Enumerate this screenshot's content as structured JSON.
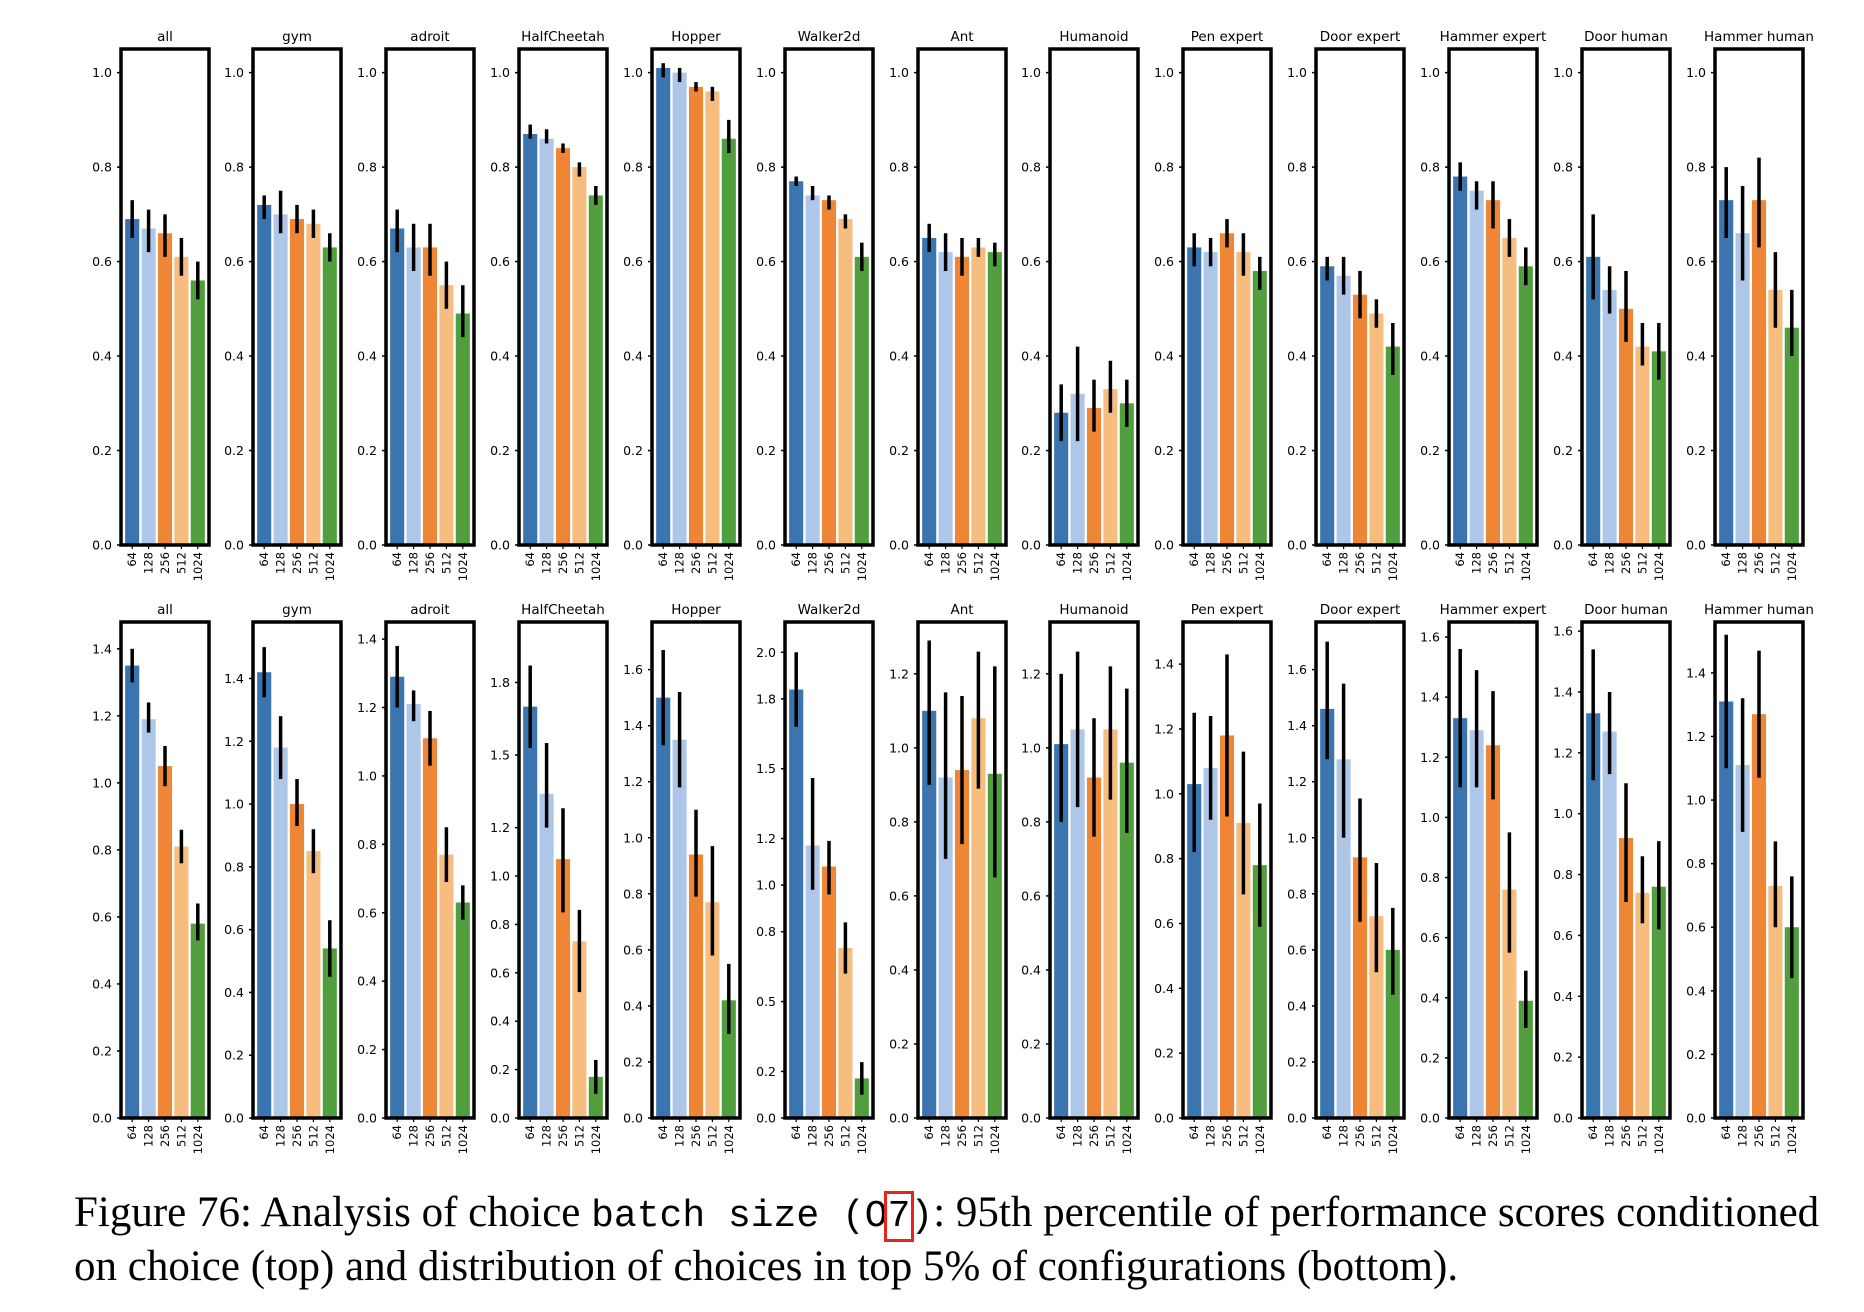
{
  "colors": [
    "#3b75af",
    "#aec7e8",
    "#ef8636",
    "#f7bd7f",
    "#519e3e"
  ],
  "choice_labels": [
    "64",
    "128",
    "256",
    "512",
    "1024"
  ],
  "caption": {
    "prefix": "Figure 76: Analysis of choice ",
    "code": "batch size",
    "paren_open": " (O",
    "highlight": "7",
    "paren_close": ")",
    "rest_line1": ": 95th percentile of performance scores conditioned",
    "line2": "on choice (top) and distribution of choices in top 5% of configurations (bottom)."
  },
  "chart_data": [
    {
      "type": "bar",
      "row": "top",
      "categories": [
        "64",
        "128",
        "256",
        "512",
        "1024"
      ],
      "ylim": [
        0,
        1.05
      ],
      "yticks": [
        0.0,
        0.2,
        0.4,
        0.6,
        0.8,
        1.0
      ],
      "tick_decimals": 1,
      "error_bars": true,
      "panels": [
        {
          "title": "all",
          "values": [
            0.69,
            0.67,
            0.66,
            0.61,
            0.56
          ],
          "err_low": [
            0.65,
            0.62,
            0.61,
            0.57,
            0.52
          ],
          "err_high": [
            0.73,
            0.71,
            0.7,
            0.65,
            0.6
          ]
        },
        {
          "title": "gym",
          "values": [
            0.72,
            0.7,
            0.69,
            0.68,
            0.63
          ],
          "err_low": [
            0.69,
            0.66,
            0.66,
            0.65,
            0.6
          ],
          "err_high": [
            0.74,
            0.75,
            0.72,
            0.71,
            0.66
          ]
        },
        {
          "title": "adroit",
          "values": [
            0.67,
            0.63,
            0.63,
            0.55,
            0.49
          ],
          "err_low": [
            0.62,
            0.58,
            0.57,
            0.5,
            0.44
          ],
          "err_high": [
            0.71,
            0.68,
            0.68,
            0.6,
            0.55
          ]
        },
        {
          "title": "HalfCheetah",
          "values": [
            0.87,
            0.86,
            0.84,
            0.8,
            0.74
          ],
          "err_low": [
            0.86,
            0.85,
            0.83,
            0.78,
            0.72
          ],
          "err_high": [
            0.89,
            0.88,
            0.85,
            0.81,
            0.76
          ]
        },
        {
          "title": "Hopper",
          "values": [
            1.01,
            1.0,
            0.97,
            0.96,
            0.86
          ],
          "err_low": [
            0.99,
            0.98,
            0.96,
            0.94,
            0.83
          ],
          "err_high": [
            1.02,
            1.01,
            0.98,
            0.97,
            0.9
          ]
        },
        {
          "title": "Walker2d",
          "values": [
            0.77,
            0.74,
            0.73,
            0.69,
            0.61
          ],
          "err_low": [
            0.76,
            0.73,
            0.71,
            0.67,
            0.58
          ],
          "err_high": [
            0.78,
            0.76,
            0.74,
            0.7,
            0.64
          ]
        },
        {
          "title": "Ant",
          "values": [
            0.65,
            0.62,
            0.61,
            0.63,
            0.62
          ],
          "err_low": [
            0.62,
            0.58,
            0.57,
            0.61,
            0.59
          ],
          "err_high": [
            0.68,
            0.66,
            0.65,
            0.65,
            0.64
          ]
        },
        {
          "title": "Humanoid",
          "values": [
            0.28,
            0.32,
            0.29,
            0.33,
            0.3
          ],
          "err_low": [
            0.22,
            0.22,
            0.24,
            0.28,
            0.25
          ],
          "err_high": [
            0.34,
            0.42,
            0.35,
            0.39,
            0.35
          ]
        },
        {
          "title": "Pen expert",
          "values": [
            0.63,
            0.62,
            0.66,
            0.62,
            0.58
          ],
          "err_low": [
            0.59,
            0.59,
            0.63,
            0.57,
            0.54
          ],
          "err_high": [
            0.66,
            0.65,
            0.69,
            0.66,
            0.61
          ]
        },
        {
          "title": "Door expert",
          "values": [
            0.59,
            0.57,
            0.53,
            0.49,
            0.42
          ],
          "err_low": [
            0.56,
            0.53,
            0.48,
            0.46,
            0.36
          ],
          "err_high": [
            0.61,
            0.61,
            0.58,
            0.52,
            0.47
          ]
        },
        {
          "title": "Hammer expert",
          "values": [
            0.78,
            0.75,
            0.73,
            0.65,
            0.59
          ],
          "err_low": [
            0.75,
            0.71,
            0.67,
            0.61,
            0.55
          ],
          "err_high": [
            0.81,
            0.77,
            0.77,
            0.69,
            0.63
          ]
        },
        {
          "title": "Door human",
          "values": [
            0.61,
            0.54,
            0.5,
            0.42,
            0.41
          ],
          "err_low": [
            0.52,
            0.49,
            0.43,
            0.38,
            0.35
          ],
          "err_high": [
            0.7,
            0.59,
            0.58,
            0.47,
            0.47
          ]
        },
        {
          "title": "Hammer human",
          "values": [
            0.73,
            0.66,
            0.73,
            0.54,
            0.46
          ],
          "err_low": [
            0.65,
            0.56,
            0.63,
            0.46,
            0.4
          ],
          "err_high": [
            0.8,
            0.76,
            0.82,
            0.62,
            0.54
          ]
        }
      ]
    },
    {
      "type": "bar",
      "row": "bottom",
      "categories": [
        "64",
        "128",
        "256",
        "512",
        "1024"
      ],
      "error_bars": true,
      "panels": [
        {
          "title": "all",
          "ylim": [
            0,
            1.48
          ],
          "yticks": [
            0.0,
            0.2,
            0.4,
            0.6,
            0.8,
            1.0,
            1.2,
            1.4
          ],
          "tick_decimals": 1,
          "values": [
            1.35,
            1.19,
            1.05,
            0.81,
            0.58
          ],
          "err_low": [
            1.3,
            1.15,
            0.99,
            0.76,
            0.53
          ],
          "err_high": [
            1.4,
            1.24,
            1.11,
            0.86,
            0.64
          ]
        },
        {
          "title": "gym",
          "ylim": [
            0,
            1.58
          ],
          "yticks": [
            0.0,
            0.2,
            0.4,
            0.6,
            0.8,
            1.0,
            1.2,
            1.4
          ],
          "tick_decimals": 1,
          "values": [
            1.42,
            1.18,
            1.0,
            0.85,
            0.54
          ],
          "err_low": [
            1.34,
            1.08,
            0.93,
            0.78,
            0.45
          ],
          "err_high": [
            1.5,
            1.28,
            1.08,
            0.92,
            0.63
          ]
        },
        {
          "title": "adroit",
          "ylim": [
            0,
            1.45
          ],
          "yticks": [
            0.0,
            0.2,
            0.4,
            0.6,
            0.8,
            1.0,
            1.2,
            1.4
          ],
          "tick_decimals": 1,
          "values": [
            1.29,
            1.21,
            1.11,
            0.77,
            0.63
          ],
          "err_low": [
            1.2,
            1.16,
            1.03,
            0.69,
            0.58
          ],
          "err_high": [
            1.38,
            1.25,
            1.19,
            0.85,
            0.68
          ]
        },
        {
          "title": "HalfCheetah",
          "ylim": [
            0,
            2.05
          ],
          "yticks": [
            0.0,
            0.2,
            0.4,
            0.6,
            0.8,
            1.0,
            1.2,
            1.5,
            1.8
          ],
          "tick_decimals": 1,
          "values": [
            1.7,
            1.34,
            1.07,
            0.73,
            0.17
          ],
          "err_low": [
            1.53,
            1.2,
            0.85,
            0.52,
            0.1
          ],
          "err_high": [
            1.87,
            1.55,
            1.28,
            0.86,
            0.24
          ]
        },
        {
          "title": "Hopper",
          "ylim": [
            0,
            1.77
          ],
          "yticks": [
            0.0,
            0.2,
            0.4,
            0.6,
            0.8,
            1.0,
            1.2,
            1.4,
            1.6
          ],
          "tick_decimals": 1,
          "values": [
            1.5,
            1.35,
            0.94,
            0.77,
            0.42
          ],
          "err_low": [
            1.33,
            1.18,
            0.79,
            0.58,
            0.3
          ],
          "err_high": [
            1.67,
            1.52,
            1.1,
            0.97,
            0.55
          ]
        },
        {
          "title": "Walker2d",
          "ylim": [
            0,
            2.13
          ],
          "yticks": [
            0.0,
            0.2,
            0.5,
            0.8,
            1.0,
            1.2,
            1.5,
            1.8,
            2.0
          ],
          "tick_decimals": 1,
          "values": [
            1.84,
            1.17,
            1.08,
            0.73,
            0.17
          ],
          "err_low": [
            1.68,
            0.98,
            0.96,
            0.62,
            0.1
          ],
          "err_high": [
            2.0,
            1.46,
            1.19,
            0.84,
            0.24
          ]
        },
        {
          "title": "Ant",
          "ylim": [
            0,
            1.34
          ],
          "yticks": [
            0.0,
            0.2,
            0.4,
            0.6,
            0.8,
            1.0,
            1.2
          ],
          "tick_decimals": 1,
          "values": [
            1.1,
            0.92,
            0.94,
            1.08,
            0.93
          ],
          "err_low": [
            0.9,
            0.7,
            0.74,
            0.89,
            0.65
          ],
          "err_high": [
            1.29,
            1.15,
            1.14,
            1.26,
            1.22
          ]
        },
        {
          "title": "Humanoid",
          "ylim": [
            0,
            1.34
          ],
          "yticks": [
            0.0,
            0.2,
            0.4,
            0.6,
            0.8,
            1.0,
            1.2
          ],
          "tick_decimals": 1,
          "values": [
            1.01,
            1.05,
            0.92,
            1.05,
            0.96
          ],
          "err_low": [
            0.8,
            0.84,
            0.76,
            0.86,
            0.77
          ],
          "err_high": [
            1.2,
            1.26,
            1.08,
            1.22,
            1.16
          ]
        },
        {
          "title": "Pen expert",
          "ylim": [
            0,
            1.53
          ],
          "yticks": [
            0.0,
            0.2,
            0.4,
            0.6,
            0.8,
            1.0,
            1.2,
            1.4
          ],
          "tick_decimals": 1,
          "values": [
            1.03,
            1.08,
            1.18,
            0.91,
            0.78
          ],
          "err_low": [
            0.82,
            0.92,
            0.93,
            0.69,
            0.59
          ],
          "err_high": [
            1.25,
            1.24,
            1.43,
            1.13,
            0.97
          ]
        },
        {
          "title": "Door expert",
          "ylim": [
            0,
            1.77
          ],
          "yticks": [
            0.0,
            0.2,
            0.4,
            0.6,
            0.8,
            1.0,
            1.2,
            1.4,
            1.6
          ],
          "tick_decimals": 1,
          "values": [
            1.46,
            1.28,
            0.93,
            0.72,
            0.6
          ],
          "err_low": [
            1.28,
            1.0,
            0.7,
            0.52,
            0.44
          ],
          "err_high": [
            1.7,
            1.55,
            1.14,
            0.91,
            0.75
          ]
        },
        {
          "title": "Hammer expert",
          "ylim": [
            0,
            1.65
          ],
          "yticks": [
            0.0,
            0.2,
            0.4,
            0.6,
            0.8,
            1.0,
            1.2,
            1.4,
            1.6
          ],
          "tick_decimals": 1,
          "values": [
            1.33,
            1.29,
            1.24,
            0.76,
            0.39
          ],
          "err_low": [
            1.1,
            1.1,
            1.06,
            0.55,
            0.3
          ],
          "err_high": [
            1.56,
            1.49,
            1.42,
            0.95,
            0.49
          ]
        },
        {
          "title": "Door human",
          "ylim": [
            0,
            1.63
          ],
          "yticks": [
            0.0,
            0.2,
            0.4,
            0.6,
            0.8,
            1.0,
            1.2,
            1.4,
            1.6
          ],
          "tick_decimals": 1,
          "values": [
            1.33,
            1.27,
            0.92,
            0.74,
            0.76
          ],
          "err_low": [
            1.11,
            1.13,
            0.71,
            0.64,
            0.62
          ],
          "err_high": [
            1.54,
            1.4,
            1.1,
            0.86,
            0.91
          ]
        },
        {
          "title": "Hammer human",
          "ylim": [
            0,
            1.56
          ],
          "yticks": [
            0.0,
            0.2,
            0.4,
            0.6,
            0.8,
            1.0,
            1.2,
            1.4
          ],
          "tick_decimals": 1,
          "values": [
            1.31,
            1.11,
            1.27,
            0.73,
            0.6
          ],
          "err_low": [
            1.1,
            0.9,
            1.07,
            0.6,
            0.44
          ],
          "err_high": [
            1.52,
            1.32,
            1.47,
            0.87,
            0.76
          ]
        }
      ]
    }
  ]
}
